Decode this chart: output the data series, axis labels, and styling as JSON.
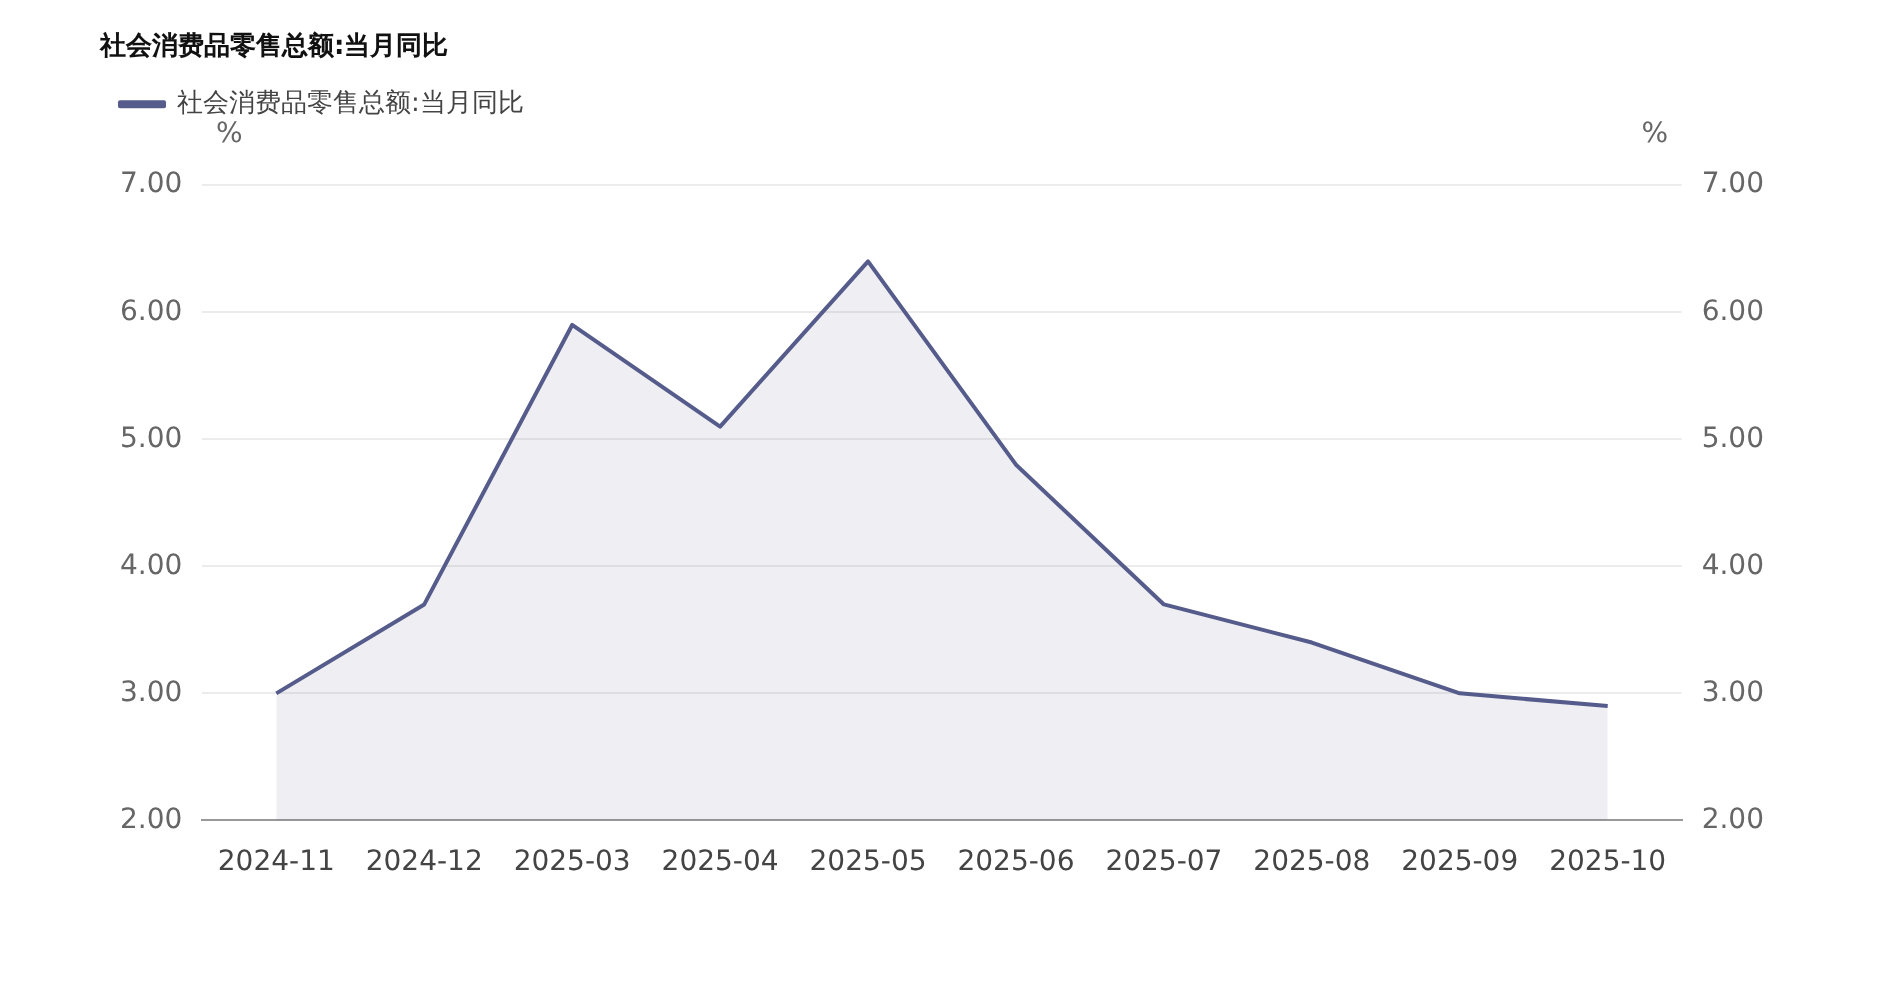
{
  "chart_data": {
    "type": "area",
    "title": "社会消费品零售总额:当月同比",
    "categories": [
      "2024-11",
      "2024-12",
      "2025-03",
      "2025-04",
      "2025-05",
      "2025-06",
      "2025-07",
      "2025-08",
      "2025-09",
      "2025-10"
    ],
    "series": [
      {
        "name": "社会消费品零售总额:当月同比",
        "color": "#555b8a",
        "values": [
          3.0,
          3.7,
          5.9,
          5.1,
          6.4,
          4.8,
          3.7,
          3.4,
          3.0,
          2.9
        ]
      }
    ],
    "ylabel": "%",
    "y2label": "%",
    "ylim": [
      2,
      7
    ],
    "yticks": [
      {
        "value": 2,
        "label": "2.00"
      },
      {
        "value": 3,
        "label": "3.00"
      },
      {
        "value": 4,
        "label": "4.00"
      },
      {
        "value": 5,
        "label": "5.00"
      },
      {
        "value": 6,
        "label": "6.00"
      },
      {
        "value": 7,
        "label": "7.00"
      }
    ],
    "y2lim": [
      2,
      7
    ],
    "y2ticks": [
      {
        "value": 2,
        "label": "2.00"
      },
      {
        "value": 3,
        "label": "3.00"
      },
      {
        "value": 4,
        "label": "4.00"
      },
      {
        "value": 5,
        "label": "5.00"
      },
      {
        "value": 6,
        "label": "6.00"
      },
      {
        "value": 7,
        "label": "7.00"
      }
    ],
    "grid": "y",
    "legend": "top left",
    "marker": "none",
    "line_style": "solid"
  }
}
